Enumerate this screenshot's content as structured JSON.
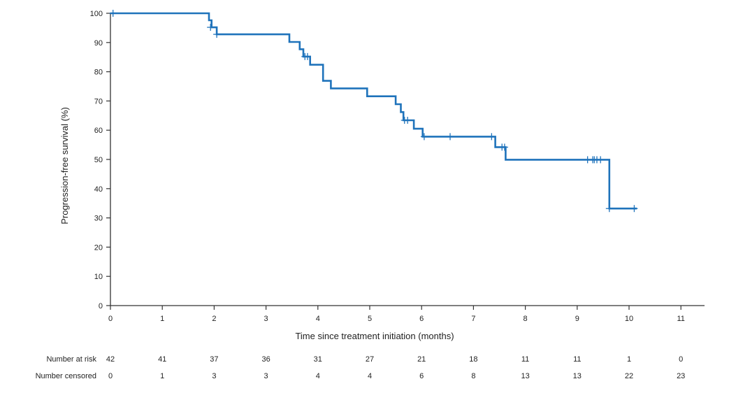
{
  "chart_data": {
    "type": "line",
    "subtype": "kaplan-meier",
    "xlabel": "Time since treatment initiation (months)",
    "ylabel": "Progression-free survival (%)",
    "xlim": [
      0,
      11
    ],
    "ylim": [
      0,
      100
    ],
    "x_ticks": [
      "0",
      "1",
      "2",
      "3",
      "4",
      "5",
      "6",
      "7",
      "8",
      "9",
      "10",
      "11"
    ],
    "y_ticks": [
      "0",
      "10",
      "20",
      "30",
      "40",
      "50",
      "60",
      "70",
      "80",
      "90",
      "100"
    ],
    "grid": false,
    "legend": "none",
    "line_color": "#1f73bb",
    "series": [
      {
        "steps": [
          {
            "x": 0,
            "y": 100
          },
          {
            "x": 1.9,
            "y": 97.6
          },
          {
            "x": 1.95,
            "y": 95.2
          },
          {
            "x": 2.05,
            "y": 92.8
          },
          {
            "x": 3.45,
            "y": 90.2
          },
          {
            "x": 3.65,
            "y": 87.7
          },
          {
            "x": 3.72,
            "y": 85.2
          },
          {
            "x": 3.85,
            "y": 82.4
          },
          {
            "x": 4.1,
            "y": 76.9
          },
          {
            "x": 4.25,
            "y": 74.3
          },
          {
            "x": 4.95,
            "y": 71.6
          },
          {
            "x": 5.5,
            "y": 68.9
          },
          {
            "x": 5.6,
            "y": 66.2
          },
          {
            "x": 5.65,
            "y": 63.4
          },
          {
            "x": 5.85,
            "y": 60.5
          },
          {
            "x": 6.02,
            "y": 57.8
          },
          {
            "x": 7.42,
            "y": 54.2
          },
          {
            "x": 7.62,
            "y": 49.9
          },
          {
            "x": 9.62,
            "y": 33.2
          },
          {
            "x": 10.15,
            "y": 33.2
          }
        ],
        "censored": [
          {
            "x": 0.05,
            "y": 100
          },
          {
            "x": 1.93,
            "y": 95.2
          },
          {
            "x": 2.05,
            "y": 92.8
          },
          {
            "x": 3.75,
            "y": 85.2
          },
          {
            "x": 3.8,
            "y": 85.2
          },
          {
            "x": 5.67,
            "y": 63.4
          },
          {
            "x": 5.73,
            "y": 63.4
          },
          {
            "x": 6.05,
            "y": 57.8
          },
          {
            "x": 6.55,
            "y": 57.8
          },
          {
            "x": 7.35,
            "y": 57.8
          },
          {
            "x": 7.55,
            "y": 54.2
          },
          {
            "x": 7.6,
            "y": 54.2
          },
          {
            "x": 9.2,
            "y": 49.9
          },
          {
            "x": 9.3,
            "y": 49.9
          },
          {
            "x": 9.33,
            "y": 49.9
          },
          {
            "x": 9.38,
            "y": 49.9
          },
          {
            "x": 9.45,
            "y": 49.9
          },
          {
            "x": 9.62,
            "y": 33.2
          },
          {
            "x": 10.1,
            "y": 33.2
          }
        ]
      }
    ],
    "risk_table": {
      "rows": [
        {
          "label": "Number at risk",
          "values": [
            "42",
            "41",
            "37",
            "36",
            "31",
            "27",
            "21",
            "18",
            "11",
            "11",
            "1",
            "0"
          ]
        },
        {
          "label": "Number censored",
          "values": [
            "0",
            "1",
            "3",
            "3",
            "4",
            "4",
            "6",
            "8",
            "13",
            "13",
            "22",
            "23"
          ]
        }
      ]
    }
  }
}
